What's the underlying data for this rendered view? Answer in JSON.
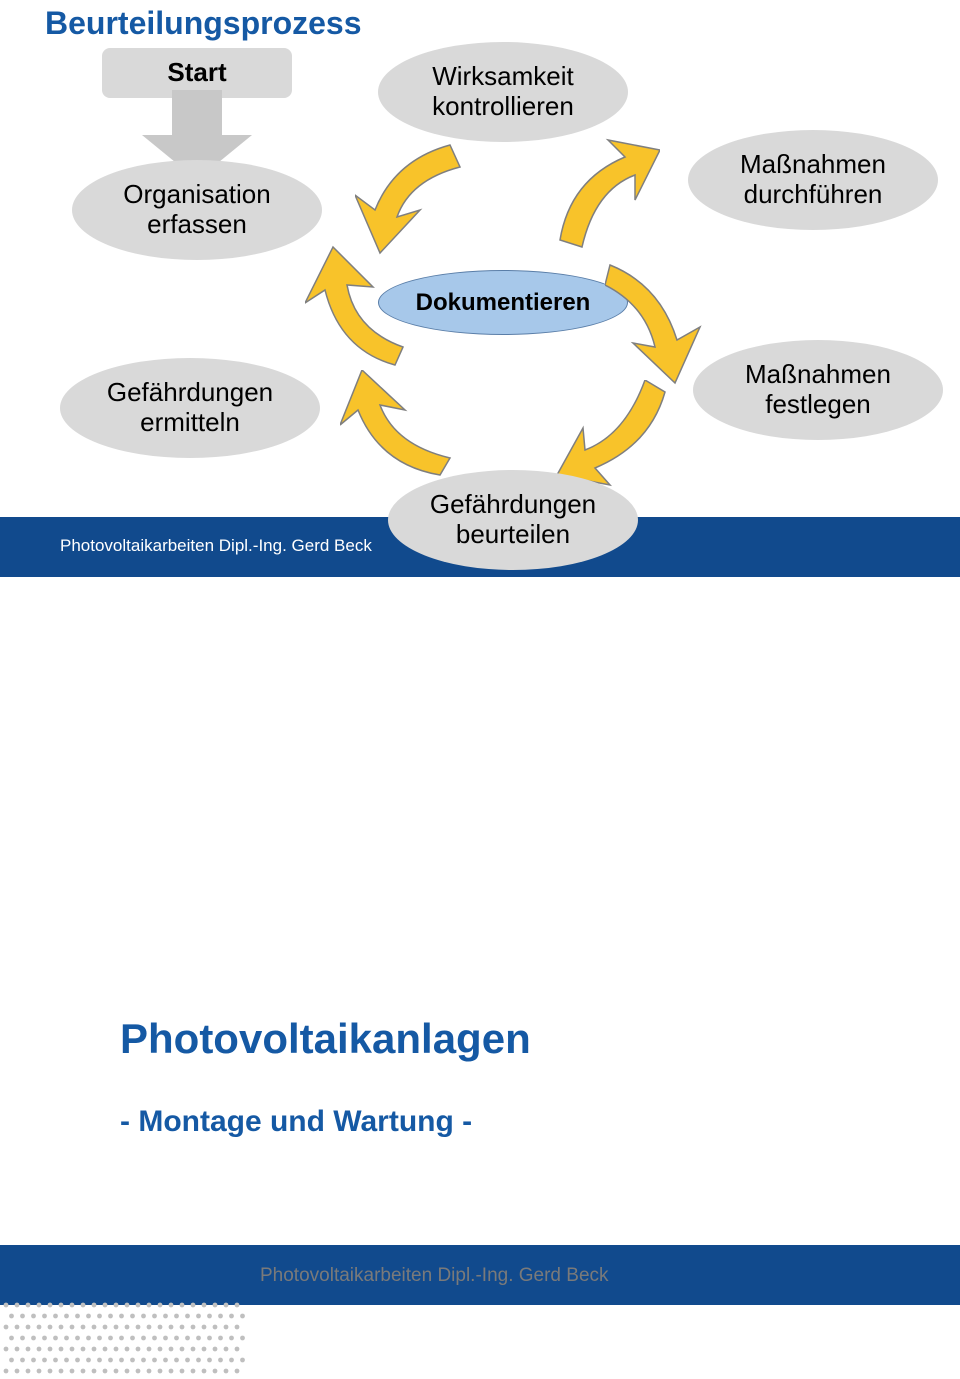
{
  "colors": {
    "title_blue": "#1559a4",
    "text_black": "#000000",
    "ellipse_gray": "#d9d9d9",
    "ellipse_blue": "#a7c8ea",
    "ellipse_border": "#a0a0a0",
    "footer_blue": "#114a8d",
    "arrow_yellow": "#f8c32a",
    "arrow_border": "#7f7f7f",
    "arrow_gray": "#c8c8c8",
    "dot_gray": "#bfbfbf"
  },
  "slide1": {
    "title": "Beurteilungsprozess",
    "title_fontsize": 32,
    "footer": "Photovoltaikarbeiten Dipl.-Ing. Gerd Beck",
    "nodes": {
      "start": {
        "label": "Start",
        "fontsize": 26,
        "weight": "bold"
      },
      "org": {
        "label": "Organisation\nerfassen",
        "fontsize": 26
      },
      "gef_ermitteln": {
        "label": "Gefährdungen\nermitteln",
        "fontsize": 26
      },
      "gef_beurteilen": {
        "label": "Gefährdungen\nbeurteilen",
        "fontsize": 26
      },
      "mass_festlegen": {
        "label": "Maßnahmen\nfestlegen",
        "fontsize": 26
      },
      "mass_durch": {
        "label": "Maßnahmen\ndurchführen",
        "fontsize": 26
      },
      "wirk": {
        "label": "Wirksamkeit\nkontrollieren",
        "fontsize": 26
      },
      "dokumentieren": {
        "label": "Dokumentieren",
        "fontsize": 24,
        "weight": "bold"
      }
    }
  },
  "slide2": {
    "title": "Photovoltaikanlagen",
    "title_fontsize": 42,
    "subtitle": "- Montage und Wartung -",
    "subtitle_fontsize": 30,
    "footer": "Photovoltaikarbeiten Dipl.-Ing. Gerd Beck"
  }
}
